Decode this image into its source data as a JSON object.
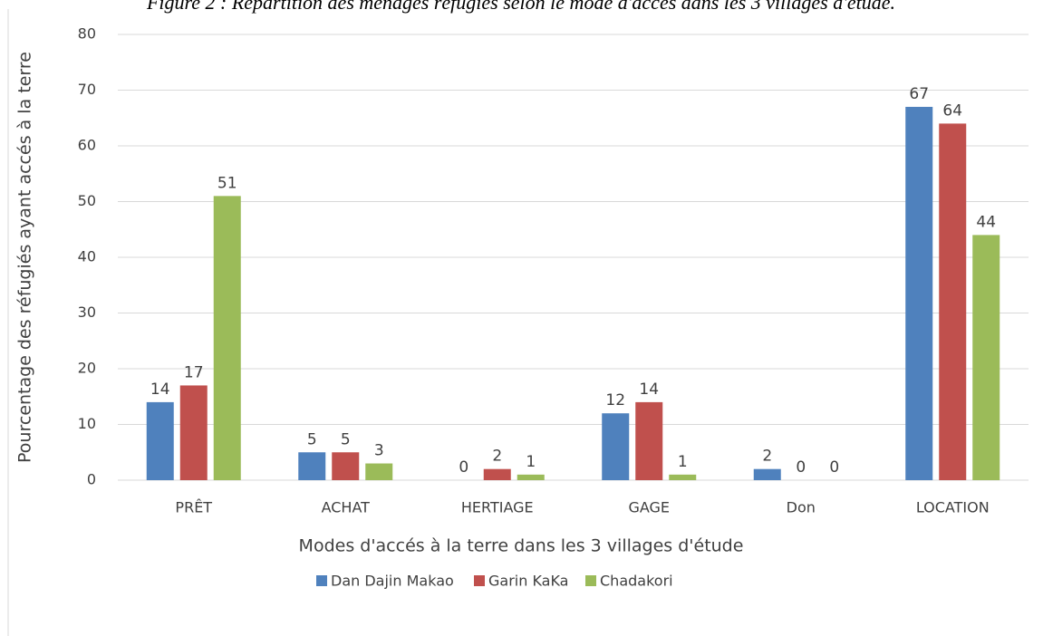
{
  "chart_data": {
    "type": "bar",
    "title": "Figure 2 : Répartition des ménages réfugiés selon le mode d'accès dans les 3 villages d'étude.",
    "x_label": "Modes d'accés à la terre dans les 3 villages d'étude",
    "y_label": "Pourcentage des réfugiés ayant accés à la terre",
    "categories": [
      "PRÊT",
      "ACHAT",
      "HERTIAGE",
      "GAGE",
      "Don",
      "LOCATION"
    ],
    "series": [
      {
        "name": "Dan Dajin Makao",
        "color": "#4f81bd",
        "values": [
          14,
          5,
          0,
          12,
          2,
          67
        ]
      },
      {
        "name": "Garin KaKa",
        "color": "#c0504d",
        "values": [
          17,
          5,
          2,
          14,
          0,
          64
        ]
      },
      {
        "name": "Chadakori",
        "color": "#9bbb59",
        "values": [
          51,
          3,
          1,
          1,
          0,
          44
        ]
      }
    ],
    "ylim": [
      0,
      80
    ],
    "yticks": [
      0,
      10,
      20,
      30,
      40,
      50,
      60,
      70,
      80
    ],
    "grid": true,
    "legend": "bottom"
  }
}
